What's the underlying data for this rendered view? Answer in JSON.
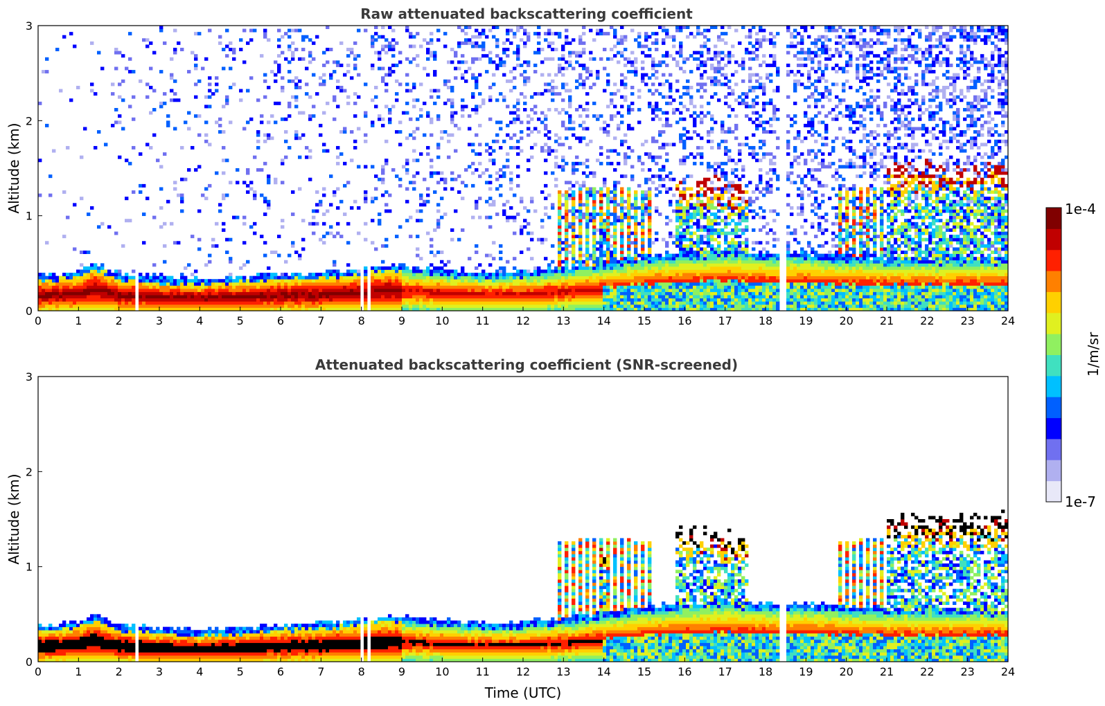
{
  "chart_data": [
    {
      "type": "heatmap",
      "title": "Raw attenuated backscattering coefficient",
      "xlabel": "",
      "ylabel": "Altitude (km)",
      "xlim": [
        0,
        24
      ],
      "ylim": [
        0,
        3
      ],
      "xticks": [
        "0",
        "1",
        "2",
        "3",
        "4",
        "5",
        "6",
        "7",
        "8",
        "9",
        "10",
        "11",
        "12",
        "13",
        "14",
        "15",
        "16",
        "17",
        "18",
        "19",
        "20",
        "21",
        "22",
        "23",
        "24"
      ],
      "yticks": [
        "0",
        "1",
        "2",
        "3"
      ],
      "screened": false,
      "boundary_layer_top_km": [
        [
          0,
          0.32
        ],
        [
          1,
          0.36
        ],
        [
          1.4,
          0.45
        ],
        [
          2,
          0.33
        ],
        [
          3,
          0.3
        ],
        [
          4,
          0.27
        ],
        [
          5,
          0.3
        ],
        [
          6,
          0.33
        ],
        [
          7,
          0.35
        ],
        [
          8,
          0.38
        ],
        [
          8.5,
          0.42
        ],
        [
          9,
          0.42
        ],
        [
          10,
          0.38
        ],
        [
          11,
          0.35
        ],
        [
          12,
          0.36
        ],
        [
          13,
          0.4
        ],
        [
          14,
          0.45
        ],
        [
          15,
          0.52
        ],
        [
          16,
          0.55
        ],
        [
          17,
          0.58
        ],
        [
          18,
          0.55
        ],
        [
          19,
          0.55
        ],
        [
          20,
          0.52
        ],
        [
          21,
          0.5
        ]
      ],
      "cloud_episodes_hours": [
        {
          "start": 13.9,
          "end": 14.1,
          "top_km": 1.3
        },
        {
          "start": 15.8,
          "end": 16.8,
          "top_km": 1.45
        },
        {
          "start": 16.8,
          "end": 17.6,
          "top_km": 1.4
        },
        {
          "start": 21.0,
          "end": 24.0,
          "top_km": 1.6
        }
      ],
      "data_gaps_hours": [
        2.45,
        8.0,
        8.2,
        18.4,
        18.5
      ]
    },
    {
      "type": "heatmap",
      "title": "Attenuated backscattering coefficient (SNR-screened)",
      "xlabel": "Time (UTC)",
      "ylabel": "Altitude (km)",
      "xlim": [
        0,
        24
      ],
      "ylim": [
        0,
        3
      ],
      "xticks": [
        "0",
        "1",
        "2",
        "3",
        "4",
        "5",
        "6",
        "7",
        "8",
        "9",
        "10",
        "11",
        "12",
        "13",
        "14",
        "15",
        "16",
        "17",
        "18",
        "19",
        "20",
        "21",
        "22",
        "23",
        "24"
      ],
      "yticks": [
        "0",
        "1",
        "2",
        "3"
      ],
      "screened": true
    }
  ],
  "colorbar": {
    "max_label": "1e-4",
    "min_label": "1e-7",
    "unit_label": "1/m/sr",
    "colors": [
      "#e8e8f8",
      "#b0b0f0",
      "#7070f0",
      "#0000ff",
      "#0060ff",
      "#00c0ff",
      "#40e0c0",
      "#90f060",
      "#e0f020",
      "#ffd000",
      "#ff8000",
      "#ff2000",
      "#c00000",
      "#800000"
    ]
  }
}
